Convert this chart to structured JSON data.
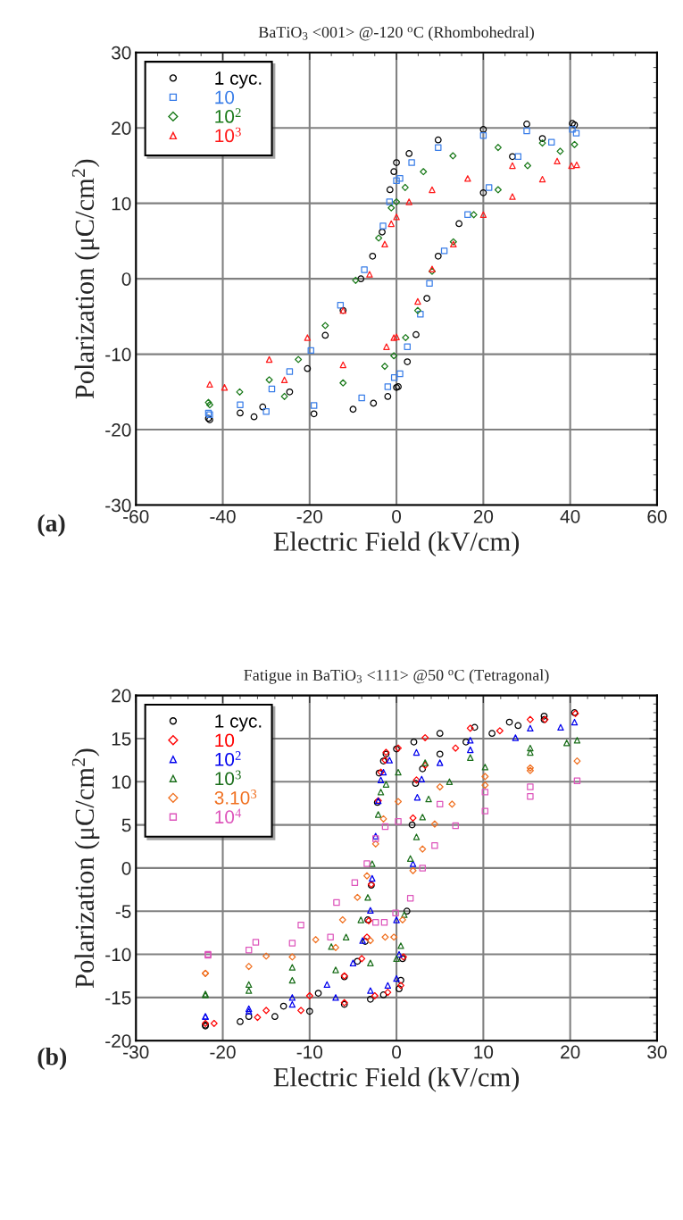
{
  "chart_data": [
    {
      "type": "scatter",
      "title": "BaTiO$_{3}$ <001> @-120 $^{o}$C (Rhombohedral)",
      "xlabel": "Electric Field (kV/cm)",
      "ylabel": "Polarization (μC/cm$^{2}$)",
      "xlim": [
        -60,
        60
      ],
      "xticks": [
        -60,
        -40,
        -20,
        0,
        20,
        40,
        60
      ],
      "ylim": [
        -30,
        30
      ],
      "yticks": [
        -30,
        -20,
        -10,
        0,
        10,
        20,
        30
      ],
      "grid": true,
      "legend": "top left",
      "annotations": [
        "(a)"
      ],
      "series": [
        {
          "name": "1 cyc.",
          "color": "#000000",
          "marker": "circle",
          "x": [
            40.5,
            30,
            20,
            9.6,
            2.9,
            0,
            -0.6,
            -1.5,
            -3.3,
            -5.5,
            -8.2,
            -12.3,
            -16.4,
            -20.5,
            -24.6,
            -30.8,
            -36,
            -43.3,
            -43,
            -32.8,
            -19,
            -10,
            -5.3,
            -2,
            0,
            0.4,
            2.5,
            4.5,
            7,
            9.6,
            14.4,
            20,
            26.7,
            33.6,
            41
          ],
          "values": [
            20.6,
            20.5,
            19.8,
            18.4,
            16.6,
            15.4,
            14.2,
            11.8,
            6.2,
            3,
            0,
            -4.2,
            -7.5,
            -11.9,
            -15,
            -17,
            -17.8,
            -18.5,
            -18.7,
            -18.3,
            -17.9,
            -17.3,
            -16.5,
            -15.6,
            -14.4,
            -14.3,
            -11,
            -7.4,
            -2.6,
            3,
            7.3,
            11.4,
            16.2,
            18.6,
            20.4
          ]
        },
        {
          "name": "10",
          "color": "#3a7ee8",
          "marker": "square",
          "x": [
            40.5,
            30,
            20,
            9.6,
            3.5,
            0.8,
            0,
            -1.6,
            -3.1,
            -7.4,
            -12.9,
            -19.7,
            -24.6,
            -28.7,
            -36,
            -43.3,
            -43,
            -30,
            -19,
            -8,
            -2,
            -0.5,
            0.8,
            2.5,
            5.5,
            7.6,
            11,
            16.4,
            21.3,
            28,
            35.7,
            41.4
          ],
          "values": [
            19.8,
            19.6,
            19,
            17.4,
            15.4,
            13.3,
            13,
            10.2,
            7,
            1.2,
            -3.5,
            -9.5,
            -12.3,
            -14.6,
            -16.7,
            -17.8,
            -18,
            -17.6,
            -16.8,
            -15.8,
            -14.3,
            -13.1,
            -12.6,
            -9,
            -4.7,
            -0.6,
            3.7,
            8.5,
            12.1,
            16.2,
            18.1,
            19.3
          ]
        },
        {
          "name": "10$^{2}$",
          "color": "#1a7a1a",
          "marker": "diamond",
          "x": [
            41,
            33.6,
            23.4,
            13,
            6.2,
            2,
            0,
            -1.2,
            -4.1,
            -9.4,
            -16.4,
            -22.6,
            -29.3,
            -36.1,
            -43.3,
            -43,
            -25.8,
            -12.3,
            -2.7,
            -0.6,
            2.1,
            4.9,
            8.2,
            13.1,
            17.8,
            23.4,
            30.2,
            37.7
          ],
          "values": [
            17.8,
            18,
            17.4,
            16.3,
            14.2,
            12.1,
            10.2,
            9.4,
            5.4,
            -0.2,
            -6.2,
            -10.7,
            -13.4,
            -15,
            -16.4,
            -16.7,
            -15.6,
            -13.8,
            -11.6,
            -10.2,
            -7.8,
            -4.2,
            1,
            4.9,
            8.5,
            11.8,
            15,
            16.9
          ]
        },
        {
          "name": "10$^{3}$",
          "color": "#ff1a1a",
          "marker": "triangle",
          "x": [
            41.5,
            37,
            26.7,
            16.4,
            8.2,
            2.9,
            0,
            -1.2,
            -2.7,
            -6.2,
            -12.3,
            -20.5,
            -29.3,
            -43,
            -39.6,
            -25.8,
            -12.3,
            -2.3,
            -0.6,
            0,
            4.9,
            8.2,
            13.1,
            20,
            26.7,
            33.6,
            40.3
          ],
          "values": [
            15.1,
            15.6,
            15,
            13.3,
            11.8,
            10.2,
            8.2,
            7.3,
            4.6,
            0.6,
            -4.2,
            -7.8,
            -10.7,
            -14,
            -14.4,
            -13.4,
            -11.4,
            -9,
            -7.8,
            -7.7,
            -3,
            1.3,
            4.6,
            8.5,
            10.9,
            13.2,
            15
          ]
        }
      ]
    },
    {
      "type": "scatter",
      "title": "Fatigue in BaTiO$_{3}$ <111> @50 $^{o}$C (Tetragonal)",
      "xlabel": "Electric Field (kV/cm)",
      "ylabel": "Polarization (μC/cm$^{2}$)",
      "xlim": [
        -30,
        30
      ],
      "xticks": [
        -30,
        -20,
        -10,
        0,
        10,
        20,
        30
      ],
      "ylim": [
        -20,
        20
      ],
      "yticks": [
        -20,
        -15,
        -10,
        -5,
        0,
        5,
        10,
        15,
        20
      ],
      "grid": true,
      "legend": "top left",
      "annotations": [
        "(b)"
      ],
      "series": [
        {
          "name": "1 cyc.",
          "color": "#000000",
          "marker": "circle",
          "x": [
            20.5,
            17,
            13,
            9,
            5,
            2,
            0,
            -1.2,
            -1.5,
            -2,
            -2.2,
            -2.9,
            -3.3,
            -3.6,
            -4.5,
            -6,
            -9,
            -13,
            -17,
            -22,
            -22,
            -18,
            -14,
            -10,
            -6,
            -3,
            -1.5,
            0.3,
            0.5,
            0.7,
            1.2,
            1.8,
            2.2,
            3,
            5,
            8,
            11,
            14,
            17
          ],
          "values": [
            18,
            17.6,
            16.9,
            16.3,
            15.6,
            14.6,
            13.8,
            13.2,
            12.4,
            11,
            7.6,
            -2,
            -6,
            -8.5,
            -10.8,
            -12.6,
            -14.5,
            -16,
            -17.2,
            -18.2,
            -18.3,
            -17.8,
            -17.2,
            -16.6,
            -15.8,
            -15.2,
            -14.7,
            -14,
            -13,
            -10.5,
            -5,
            5,
            9.8,
            11.5,
            13.2,
            14.6,
            15.6,
            16.5,
            17.2
          ]
        },
        {
          "name": "10",
          "color": "#ff0000",
          "marker": "diamond",
          "x": [
            20.6,
            15.4,
            8.5,
            3.3,
            0.2,
            -1.2,
            -1.3,
            -1.8,
            -2.1,
            -2.9,
            -3.2,
            -3.4,
            -4,
            -6,
            -10,
            -15,
            -22,
            -21,
            -16,
            -11,
            -6,
            -2.5,
            -1,
            0.5,
            0.8,
            1.9,
            2.3,
            3.3,
            6.8,
            11.9,
            17.1
          ],
          "values": [
            17.9,
            17.2,
            16.2,
            15.1,
            13.9,
            13.4,
            12.5,
            11.1,
            7.8,
            -1.9,
            -6.1,
            -8,
            -10.5,
            -12.5,
            -14.8,
            -16.5,
            -18,
            -18,
            -17.3,
            -16.5,
            -15.6,
            -14.8,
            -14.4,
            -13.6,
            -10.3,
            5.8,
            10.2,
            11.9,
            13.9,
            15.9,
            17.2
          ]
        },
        {
          "name": "10$^{2}$",
          "color": "#0000ee",
          "marker": "triangle",
          "x": [
            20.5,
            15.4,
            8.5,
            2.3,
            -0.8,
            -1.5,
            -1.8,
            -2.1,
            -2.4,
            -2.8,
            -3,
            -3.9,
            -5,
            -8,
            -12,
            -17,
            -22,
            -22,
            -17,
            -12,
            -7,
            -3,
            -1,
            0,
            0.3,
            0,
            1.9,
            2.4,
            2.9,
            5,
            8.5,
            13.7,
            18.9
          ],
          "values": [
            16.9,
            16.2,
            14.8,
            13.4,
            12.5,
            11.1,
            10.2,
            7.8,
            3.7,
            -1.2,
            -4.9,
            -8.4,
            -11,
            -13.5,
            -15,
            -16.3,
            -17.2,
            -17.2,
            -16.6,
            -15.8,
            -15,
            -14.2,
            -13.6,
            -12.8,
            -10,
            -6,
            0.5,
            8.2,
            10.3,
            12.2,
            13.7,
            15.1,
            16.3
          ]
        },
        {
          "name": "10$^{3}$",
          "color": "#1a6e1a",
          "marker": "triangle",
          "x": [
            20.8,
            15.4,
            8.5,
            3.3,
            0.2,
            -1.2,
            -1.8,
            -2.1,
            -2.8,
            -3.3,
            -4.1,
            -5.8,
            -7.5,
            -12,
            -17,
            -22,
            -22,
            -17,
            -12,
            -7,
            -3,
            0,
            0.5,
            0.9,
            1.6,
            2.3,
            3,
            3.7,
            6.1,
            10.2,
            15.4,
            19.6
          ],
          "values": [
            14.8,
            13.9,
            12.8,
            12.2,
            11.1,
            9.7,
            8.8,
            6.2,
            0.5,
            -3.4,
            -6,
            -8,
            -9.1,
            -11.5,
            -13.5,
            -14.6,
            -14.7,
            -14.2,
            -13,
            -11.8,
            -11,
            -10.5,
            -9,
            -5.4,
            1.1,
            3.6,
            5.9,
            8,
            10,
            11.7,
            13.4,
            14.5
          ]
        },
        {
          "name": "3.10$^{3}$",
          "color": "#f07020",
          "marker": "diamond",
          "x": [
            20.8,
            15.4,
            10.2,
            5,
            0.2,
            -1.5,
            -2.4,
            -3.4,
            -4.5,
            -6.2,
            -9.3,
            -15,
            -22,
            -22,
            -17,
            -12,
            -7,
            -3,
            -1.3,
            -0.3,
            0.7,
            1.9,
            3,
            4.4,
            6.4,
            10.2,
            15.4
          ],
          "values": [
            12.4,
            11.6,
            10.6,
            9.4,
            7.7,
            5.7,
            2.8,
            -0.9,
            -3.4,
            -6,
            -8.3,
            -10.2,
            -12.2,
            -12.2,
            -11.4,
            -10.3,
            -9.2,
            -8.4,
            -8,
            -8,
            -6,
            -0.3,
            2.2,
            5.1,
            7.4,
            9.6,
            11.3
          ]
        },
        {
          "name": "10$^{4}$",
          "color": "#dd55bb",
          "marker": "square",
          "x": [
            20.8,
            15.4,
            10.2,
            5,
            0.2,
            -1.3,
            -2.4,
            -3.4,
            -4.8,
            -6.9,
            -11,
            -16.2,
            -21.7,
            -21.7,
            -17,
            -12,
            -7.6,
            -2.4,
            -1.4,
            -0.1,
            1.6,
            3,
            4.4,
            6.8,
            10.2,
            15.4
          ],
          "values": [
            10.1,
            9.4,
            8.8,
            7.4,
            5.4,
            4.8,
            3.4,
            0.5,
            -1.7,
            -4,
            -6.6,
            -8.6,
            -10,
            -10.1,
            -9.5,
            -8.7,
            -8,
            -6.3,
            -6.3,
            -5.2,
            -3.5,
            0,
            2.6,
            4.9,
            6.6,
            8.3
          ]
        }
      ]
    }
  ]
}
